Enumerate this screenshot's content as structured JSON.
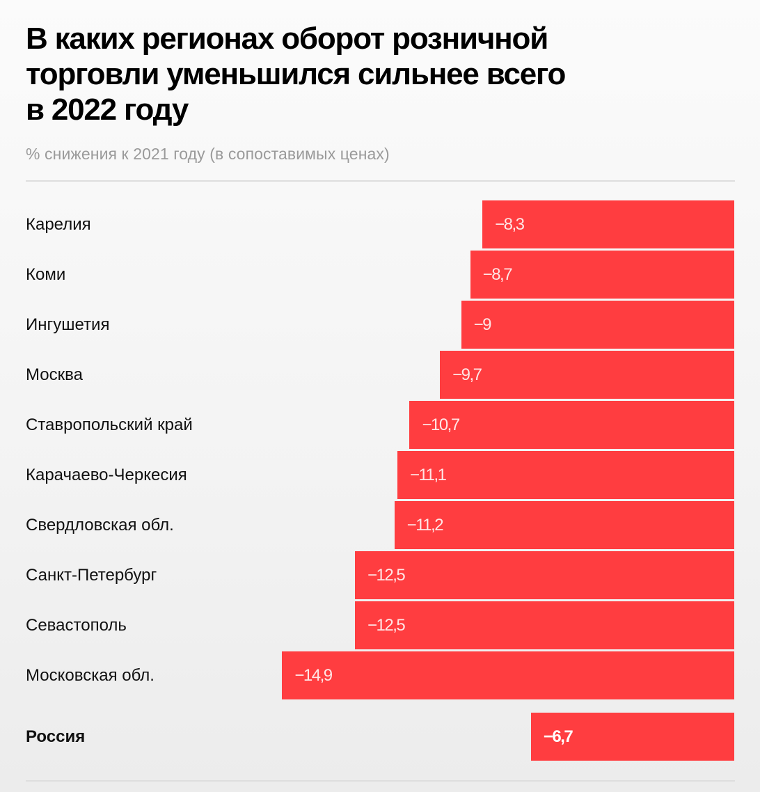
{
  "header": {
    "title_lines": [
      "В каких регионах оборот розничной",
      "торговли уменьшился сильнее всего",
      "в 2022 году"
    ],
    "subtitle": "% снижения к 2021 году (в сопоставимых ценах)"
  },
  "colors": {
    "bar": "#ff3d40",
    "value_text": "#ffe5e5",
    "title": "#000000",
    "subtitle": "#9a9a9a"
  },
  "chart_data": {
    "type": "bar",
    "orientation": "horizontal",
    "title": "В каких регионах оборот розничной торговли уменьшился сильнее всего в 2022 году",
    "subtitle": "% снижения к 2021 году (в сопоставимых ценах)",
    "xlabel": "",
    "ylabel": "",
    "xlim": [
      -14.9,
      0
    ],
    "grid": false,
    "legend": "none",
    "categories": [
      "Карелия",
      "Коми",
      "Ингушетия",
      "Москва",
      "Ставропольский край",
      "Карачаево-Черкесия",
      "Свердловская обл.",
      "Санкт-Петербург",
      "Севастополь",
      "Московская обл."
    ],
    "values": [
      -8.3,
      -8.7,
      -9,
      -9.7,
      -10.7,
      -11.1,
      -11.2,
      -12.5,
      -12.5,
      -14.9
    ],
    "value_labels": [
      "−8,3",
      "−8,7",
      "−9",
      "−9,7",
      "−10,7",
      "−11,1",
      "−11,2",
      "−12,5",
      "−12,5",
      "−14,9"
    ],
    "total": {
      "category": "Россия",
      "value": -6.7,
      "value_label": "−6,7"
    }
  }
}
